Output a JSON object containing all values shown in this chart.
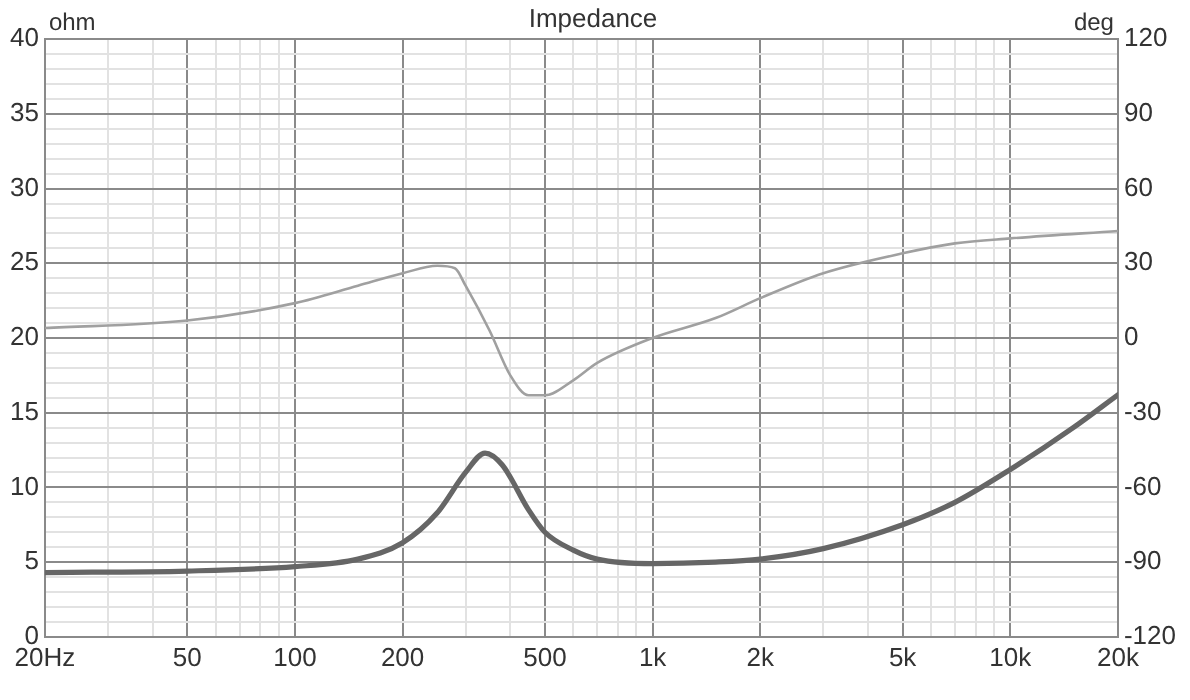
{
  "chart_data": {
    "type": "line",
    "title": "Impedance",
    "ylabel": "ohm",
    "y2label": "deg",
    "log": "x",
    "grid": true,
    "legend": false,
    "marker": "none",
    "line_style": "solid",
    "xlim": [
      20,
      20000
    ],
    "xticks": [
      {
        "value": 20,
        "label": "20Hz"
      },
      {
        "value": 30,
        "label": null
      },
      {
        "value": 40,
        "label": null
      },
      50,
      {
        "value": 60,
        "label": null
      },
      {
        "value": 70,
        "label": null
      },
      {
        "value": 80,
        "label": null
      },
      {
        "value": 90,
        "label": null
      },
      100,
      200,
      {
        "value": 300,
        "label": null
      },
      {
        "value": 400,
        "label": null
      },
      500,
      {
        "value": 600,
        "label": null
      },
      {
        "value": 700,
        "label": null
      },
      {
        "value": 800,
        "label": null
      },
      {
        "value": 900,
        "label": null
      },
      {
        "value": 1000,
        "label": "1k"
      },
      {
        "value": 2000,
        "label": "2k"
      },
      {
        "value": 3000,
        "label": null
      },
      {
        "value": 4000,
        "label": null
      },
      {
        "value": 5000,
        "label": "5k"
      },
      {
        "value": 6000,
        "label": null
      },
      {
        "value": 7000,
        "label": null
      },
      {
        "value": 8000,
        "label": null
      },
      {
        "value": 9000,
        "label": null
      },
      {
        "value": 10000,
        "label": "10k"
      },
      {
        "value": 20000,
        "label": "20k"
      }
    ],
    "ylim": [
      0,
      40
    ],
    "yticks": [
      0,
      {
        "value": 1,
        "label": null
      },
      {
        "value": 2,
        "label": null
      },
      {
        "value": 3,
        "label": null
      },
      {
        "value": 4,
        "label": null
      },
      5,
      {
        "value": 6,
        "label": null
      },
      {
        "value": 7,
        "label": null
      },
      {
        "value": 8,
        "label": null
      },
      {
        "value": 9,
        "label": null
      },
      10,
      {
        "value": 11,
        "label": null
      },
      {
        "value": 12,
        "label": null
      },
      {
        "value": 13,
        "label": null
      },
      {
        "value": 14,
        "label": null
      },
      15,
      {
        "value": 16,
        "label": null
      },
      {
        "value": 17,
        "label": null
      },
      {
        "value": 18,
        "label": null
      },
      {
        "value": 19,
        "label": null
      },
      20,
      {
        "value": 21,
        "label": null
      },
      {
        "value": 22,
        "label": null
      },
      {
        "value": 23,
        "label": null
      },
      {
        "value": 24,
        "label": null
      },
      25,
      {
        "value": 26,
        "label": null
      },
      {
        "value": 27,
        "label": null
      },
      {
        "value": 28,
        "label": null
      },
      {
        "value": 29,
        "label": null
      },
      30,
      {
        "value": 31,
        "label": null
      },
      {
        "value": 32,
        "label": null
      },
      {
        "value": 33,
        "label": null
      },
      {
        "value": 34,
        "label": null
      },
      35,
      {
        "value": 36,
        "label": null
      },
      {
        "value": 37,
        "label": null
      },
      {
        "value": 38,
        "label": null
      },
      {
        "value": 39,
        "label": null
      },
      40
    ],
    "y2lim": [
      -120,
      120
    ],
    "y2ticks": [
      -120,
      -90,
      -60,
      -30,
      0,
      30,
      60,
      90,
      120
    ],
    "x": [
      20,
      50,
      100,
      150,
      200,
      250,
      300,
      340,
      380,
      450,
      500,
      600,
      700,
      1000,
      1500,
      2000,
      3000,
      5000,
      7000,
      10000,
      15000,
      20000
    ],
    "series": [
      {
        "color": "#666666",
        "values": [
          4.3,
          4.4,
          4.7,
          5.2,
          6.3,
          8.3,
          11,
          12.3,
          11.5,
          8.5,
          7,
          5.8,
          5.2,
          4.9,
          5.0,
          5.2,
          5.9,
          7.5,
          9,
          11.2,
          14,
          16.2
        ]
      },
      {
        "color": "#a0a0a0",
        "axis": "y2",
        "x": [
          20,
          50,
          100,
          150,
          200,
          250,
          280,
          300,
          350,
          400,
          450,
          500,
          600,
          700,
          1000,
          1500,
          2000,
          3000,
          5000,
          7000,
          10000,
          20000
        ],
        "values": [
          4,
          7,
          14,
          21,
          26,
          29,
          28,
          21,
          3,
          -15,
          -23,
          -23,
          -17,
          -10,
          0,
          8,
          16,
          26,
          34,
          38,
          40,
          43
        ]
      }
    ]
  }
}
